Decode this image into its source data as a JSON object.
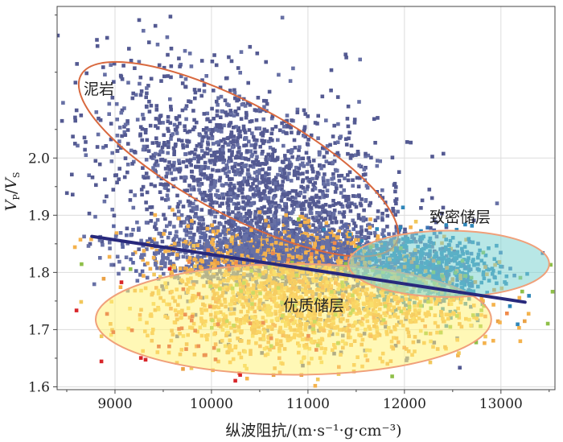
{
  "chart_data": {
    "type": "scatter",
    "title": "",
    "xlabel": "纵波阻抗/(m·s⁻¹·g·cm⁻³)",
    "ylabel_main": "V",
    "ylabel_sub1": "P",
    "ylabel_sep": "/",
    "ylabel_sub2": "S",
    "xlim": [
      8400,
      13560
    ],
    "ylim": [
      1.595,
      2.265
    ],
    "x_ticks": [
      9000,
      10000,
      11000,
      12000,
      13000
    ],
    "x_tick_labels": [
      "9000",
      "10000",
      "11000",
      "12000",
      "13000"
    ],
    "y_ticks": [
      1.6,
      1.7,
      1.8,
      1.9,
      2.0
    ],
    "y_tick_labels": [
      "1.6",
      "1.7",
      "1.8",
      "1.9",
      "2.0"
    ],
    "grid": true,
    "colors": {
      "mudstone_points": "#545a92",
      "mudstone_points_alt": "#6770a5",
      "tight_points": "#2f86b9",
      "quality_points": "#f4b24d",
      "quality_points_alt": "#eaa145",
      "green_points": "#8fbf49",
      "red_points": "#d8262a",
      "trend_line": "#28297c",
      "mudstone_ellipse": "#d9693f",
      "tight_fill": "#7dd4d2",
      "tight_stroke": "#f0a07a",
      "quality_fill": "#fff27a",
      "quality_stroke": "#f0a07a"
    },
    "regions": [
      {
        "name": "泥岩",
        "cx": 10280,
        "cy": 1.998,
        "rx": 1850,
        "ry_rel": 0.125,
        "angle_deg": 28,
        "filled": false
      },
      {
        "name": "致密储层",
        "cx": 12460,
        "cy": 1.815,
        "rx": 1040,
        "ry": 0.058,
        "angle_deg": 0,
        "filled": true
      },
      {
        "name": "优质储层",
        "cx": 10850,
        "cy": 1.718,
        "rx": 2050,
        "ry": 0.097,
        "angle_deg": 0,
        "filled": true
      }
    ],
    "trend_line": {
      "x": [
        8760,
        13250
      ],
      "y": [
        1.863,
        1.748
      ]
    },
    "point_groups": [
      {
        "name": "mudstone",
        "count": 2200,
        "x_center": 10450,
        "x_spread": 780,
        "y_center": 1.94,
        "y_spread": 0.09
      },
      {
        "name": "transition",
        "count": 1800,
        "x_center": 10700,
        "x_spread": 700,
        "y_center": 1.835,
        "y_spread": 0.025
      },
      {
        "name": "tight",
        "count": 650,
        "x_center": 12200,
        "x_spread": 380,
        "y_center": 1.8,
        "y_spread": 0.03
      },
      {
        "name": "quality",
        "count": 1400,
        "x_center": 11000,
        "x_spread": 800,
        "y_center": 1.74,
        "y_spread": 0.045
      },
      {
        "name": "green",
        "count": 90,
        "x_center": 11300,
        "x_spread": 900,
        "y_center": 1.77,
        "y_spread": 0.05
      },
      {
        "name": "red",
        "count": 35,
        "x_center": 9800,
        "x_spread": 500,
        "y_center": 1.7,
        "y_spread": 0.06
      }
    ]
  }
}
